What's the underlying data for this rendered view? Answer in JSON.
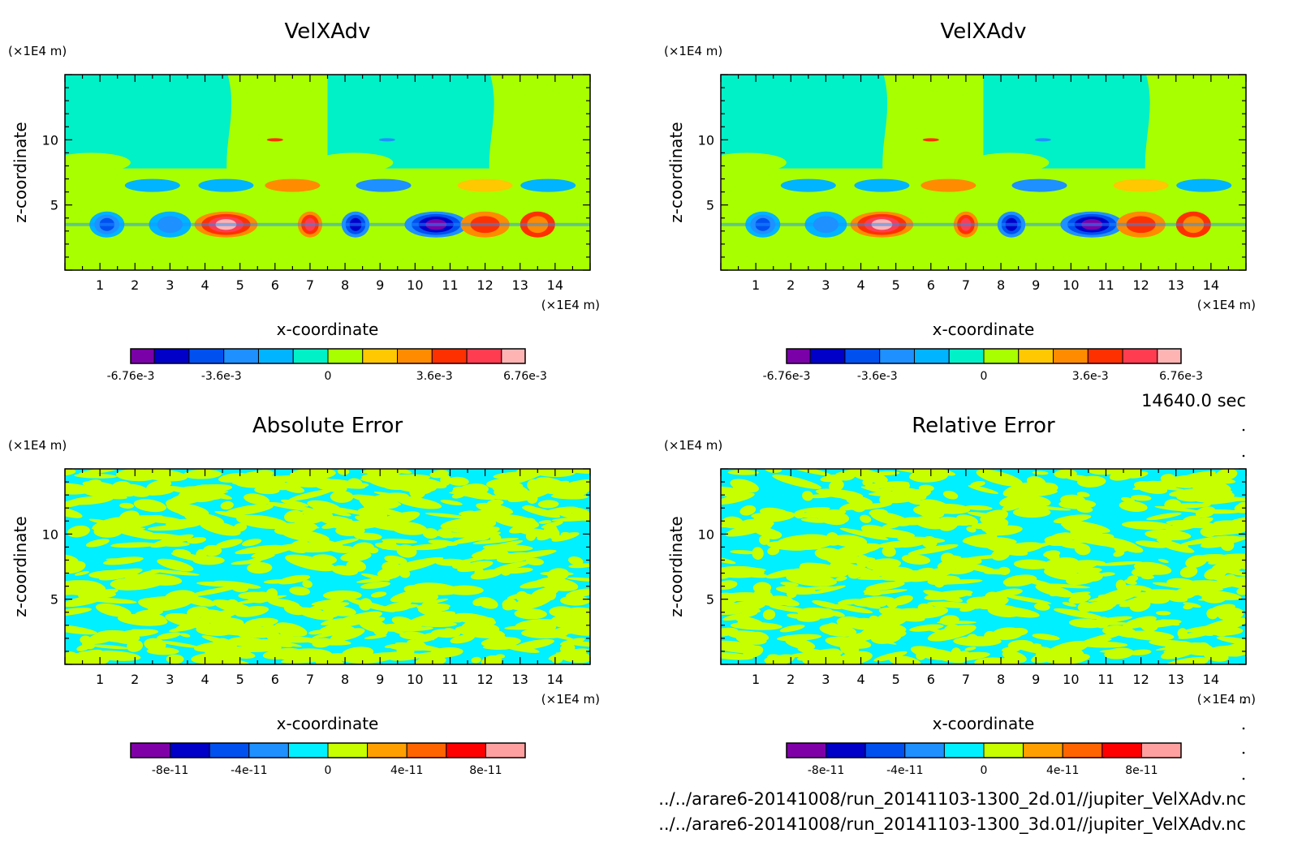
{
  "time_label": "14640.0 sec",
  "footer": {
    "file1": "../../arare6-20141008/run_20141103-1300_2d.01//jupiter_VelXAdv.nc",
    "file2": "../../arare6-20141008/run_20141103-1300_3d.01//jupiter_VelXAdv.nc"
  },
  "chart_data": [
    {
      "type": "heatmap",
      "title": "VelXAdv",
      "xlabel": "x-coordinate",
      "ylabel": "z-coordinate",
      "x_unit": "(×1E4 m)",
      "y_unit": "(×1E4 m)",
      "x_ticks": [
        "1",
        "2",
        "3",
        "4",
        "5",
        "6",
        "7",
        "8",
        "9",
        "10",
        "11",
        "12",
        "13",
        "14"
      ],
      "y_ticks": [
        "5",
        "10"
      ],
      "xlim": [
        0,
        15
      ],
      "ylim": [
        0,
        15
      ],
      "colorbar": {
        "colors": [
          "#7a00a8",
          "#0000c8",
          "#0050f0",
          "#1e90ff",
          "#00b4ff",
          "#00f0c8",
          "#a8ff00",
          "#ffc800",
          "#ff8c00",
          "#ff3000",
          "#ff3c50",
          "#ffb4b4"
        ],
        "tick_labels": [
          "-6.76e-3",
          "-3.6e-3",
          "0",
          "3.6e-3",
          "6.76e-3"
        ]
      },
      "pattern": "field"
    },
    {
      "type": "heatmap",
      "title": "VelXAdv",
      "xlabel": "x-coordinate",
      "ylabel": "z-coordinate",
      "x_unit": "(×1E4 m)",
      "y_unit": "(×1E4 m)",
      "x_ticks": [
        "1",
        "2",
        "3",
        "4",
        "5",
        "6",
        "7",
        "8",
        "9",
        "10",
        "11",
        "12",
        "13",
        "14"
      ],
      "y_ticks": [
        "5",
        "10"
      ],
      "xlim": [
        0,
        15
      ],
      "ylim": [
        0,
        15
      ],
      "colorbar": {
        "colors": [
          "#7a00a8",
          "#0000c8",
          "#0050f0",
          "#1e90ff",
          "#00b4ff",
          "#00f0c8",
          "#a8ff00",
          "#ffc800",
          "#ff8c00",
          "#ff3000",
          "#ff3c50",
          "#ffb4b4"
        ],
        "tick_labels": [
          "-6.76e-3",
          "-3.6e-3",
          "0",
          "3.6e-3",
          "6.76e-3"
        ]
      },
      "pattern": "field"
    },
    {
      "type": "heatmap",
      "title": "Absolute Error",
      "xlabel": "x-coordinate",
      "ylabel": "z-coordinate",
      "x_unit": "(×1E4 m)",
      "y_unit": "(×1E4 m)",
      "x_ticks": [
        "1",
        "2",
        "3",
        "4",
        "5",
        "6",
        "7",
        "8",
        "9",
        "10",
        "11",
        "12",
        "13",
        "14"
      ],
      "y_ticks": [
        "5",
        "10"
      ],
      "xlim": [
        0,
        15
      ],
      "ylim": [
        0,
        15
      ],
      "colorbar": {
        "colors": [
          "#8000a8",
          "#0000c8",
          "#0050f0",
          "#1e90ff",
          "#00f0ff",
          "#c8ff00",
          "#ffa000",
          "#ff6400",
          "#ff0000",
          "#ffa0a0"
        ],
        "tick_labels": [
          "-8e-11",
          "-4e-11",
          "0",
          "4e-11",
          "8e-11"
        ]
      },
      "pattern": "noise"
    },
    {
      "type": "heatmap",
      "title": "Relative Error",
      "xlabel": "x-coordinate",
      "ylabel": "z-coordinate",
      "x_unit": "(×1E4 m)",
      "y_unit": "(×1E4 m)",
      "x_ticks": [
        "1",
        "2",
        "3",
        "4",
        "5",
        "6",
        "7",
        "8",
        "9",
        "10",
        "11",
        "12",
        "13",
        "14"
      ],
      "y_ticks": [
        "5",
        "10"
      ],
      "xlim": [
        0,
        15
      ],
      "ylim": [
        0,
        15
      ],
      "colorbar": {
        "colors": [
          "#8000a8",
          "#0000c8",
          "#0050f0",
          "#1e90ff",
          "#00f0ff",
          "#c8ff00",
          "#ffa000",
          "#ff6400",
          "#ff0000",
          "#ffa0a0"
        ],
        "tick_labels": [
          "-8e-11",
          "-4e-11",
          "0",
          "4e-11",
          "8e-11"
        ]
      },
      "pattern": "noise"
    }
  ]
}
